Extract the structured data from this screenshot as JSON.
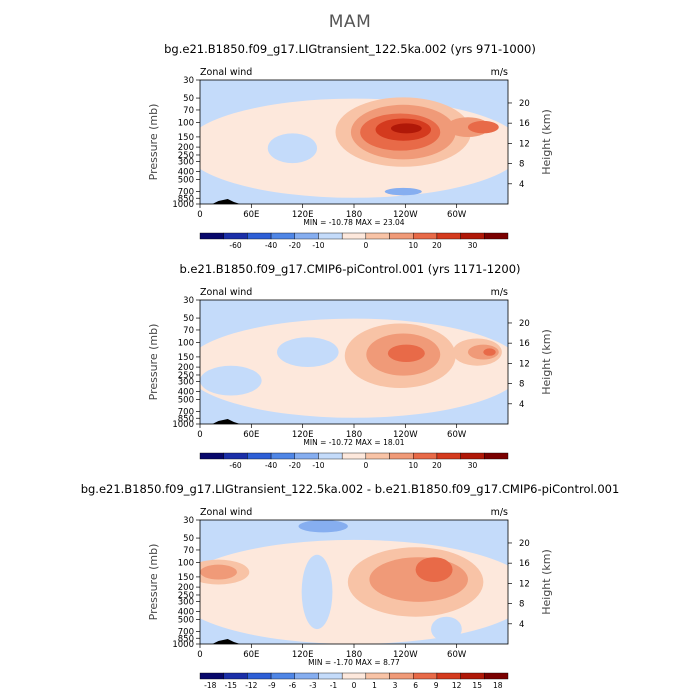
{
  "page_title": "MAM",
  "colors": {
    "full": [
      "#08086b",
      "#1b2fa8",
      "#2e5fd6",
      "#4f86e6",
      "#86aef0",
      "#c4dbfa",
      "#fde8dc",
      "#f8c3a6",
      "#f09a78",
      "#e86a48",
      "#d43a1e",
      "#b01808",
      "#7a0000"
    ],
    "diff": [
      "#08086b",
      "#1b2fa8",
      "#2e5fd6",
      "#4f86e6",
      "#86aef0",
      "#c4dbfa",
      "#fde8dc",
      "#f8c3a6",
      "#f09a78",
      "#e86a48",
      "#d43a1e",
      "#b01808",
      "#7a0000"
    ]
  },
  "chart_data": [
    {
      "type": "heatmap",
      "title": "bg.e21.B1850.f09_g17.LIGtransient_122.5ka.002 (yrs 971-1000)",
      "left_label": "Zonal wind",
      "right_label": "m/s",
      "ylabel": "Pressure (mb)",
      "ylabel_right": "Height (km)",
      "xticks": [
        "0",
        "60E",
        "120E",
        "180",
        "120W",
        "60W"
      ],
      "yticks": [
        "30",
        "50",
        "70",
        "100",
        "150",
        "200",
        "250",
        "300",
        "400",
        "500",
        "700",
        "850",
        "1000"
      ],
      "yticks_right": [
        "20",
        "16",
        "12",
        "8",
        "4"
      ],
      "stats": "MIN = -10.78   MAX =  23.04",
      "colorbar_labels": [
        "-60",
        "-40",
        "-20",
        "-10",
        "0",
        "10",
        "20",
        "30"
      ]
    },
    {
      "type": "heatmap",
      "title": "b.e21.B1850.f09_g17.CMIP6-piControl.001 (yrs 1171-1200)",
      "left_label": "Zonal wind",
      "right_label": "m/s",
      "ylabel": "Pressure (mb)",
      "ylabel_right": "Height (km)",
      "xticks": [
        "0",
        "60E",
        "120E",
        "180",
        "120W",
        "60W"
      ],
      "yticks": [
        "30",
        "50",
        "70",
        "100",
        "150",
        "200",
        "250",
        "300",
        "400",
        "500",
        "700",
        "850",
        "1000"
      ],
      "yticks_right": [
        "20",
        "16",
        "12",
        "8",
        "4"
      ],
      "stats": "MIN = -10.72   MAX =  18.01",
      "colorbar_labels": [
        "-60",
        "-40",
        "-20",
        "-10",
        "0",
        "10",
        "20",
        "30"
      ]
    },
    {
      "type": "heatmap",
      "title": "bg.e21.B1850.f09_g17.LIGtransient_122.5ka.002 - b.e21.B1850.f09_g17.CMIP6-piControl.001",
      "left_label": "Zonal wind",
      "right_label": "m/s",
      "ylabel": "Pressure (mb)",
      "ylabel_right": "Height (km)",
      "xticks": [
        "0",
        "60E",
        "120E",
        "180",
        "120W",
        "60W"
      ],
      "yticks": [
        "30",
        "50",
        "70",
        "100",
        "150",
        "200",
        "250",
        "300",
        "400",
        "500",
        "700",
        "850",
        "1000"
      ],
      "yticks_right": [
        "20",
        "16",
        "12",
        "8",
        "4"
      ],
      "stats": "MIN =  -1.70   MAX =   8.77",
      "colorbar_labels": [
        "-18",
        "-15",
        "-12",
        "-9",
        "-6",
        "-3",
        "-1",
        "0",
        "1",
        "3",
        "6",
        "9",
        "12",
        "15",
        "18"
      ]
    }
  ]
}
